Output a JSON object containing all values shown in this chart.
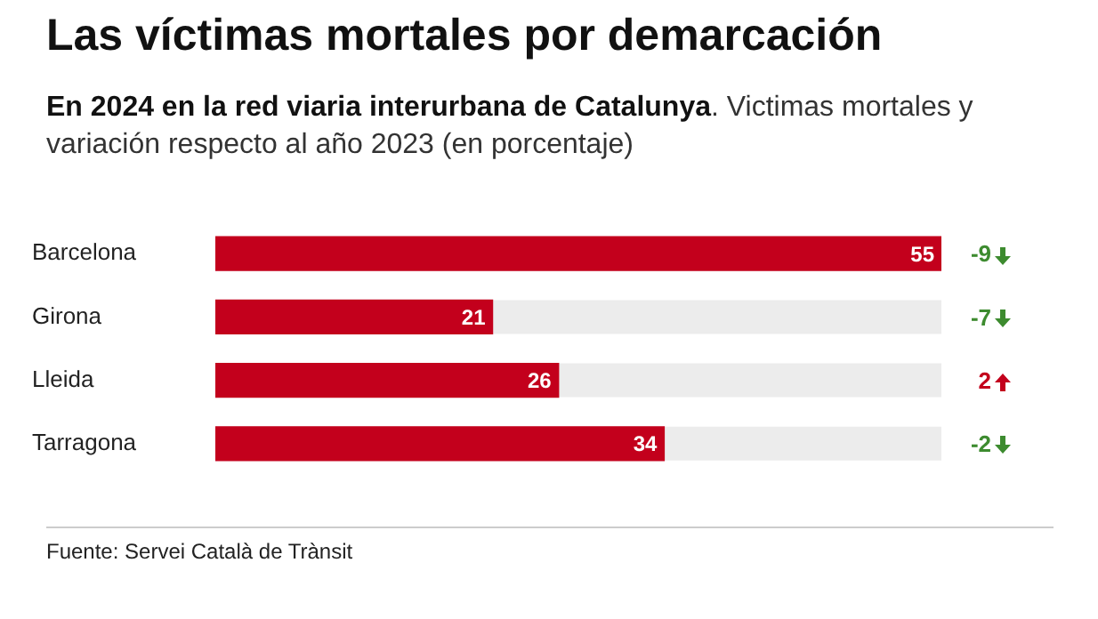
{
  "chart_data": {
    "type": "bar",
    "orientation": "horizontal",
    "title": "Las víctimas mortales por demarcación",
    "subtitle": "En 2024 en la red viaria interurbana de Catalunya. Victimas mortales y variación respecto al año 2023 (en porcentaje)",
    "categories": [
      "Barcelona",
      "Girona",
      "Lleida",
      "Tarragona"
    ],
    "values": [
      55,
      21,
      26,
      34
    ],
    "color": "#c3001c",
    "xlim": [
      0,
      55
    ],
    "tick_labels": "y",
    "grid": false,
    "legend": false,
    "data_labels": true,
    "annotations": [
      "-9",
      "-7",
      "2",
      "-2",
      "Fuente: Servei Català de Trànsit"
    ]
  }
}
